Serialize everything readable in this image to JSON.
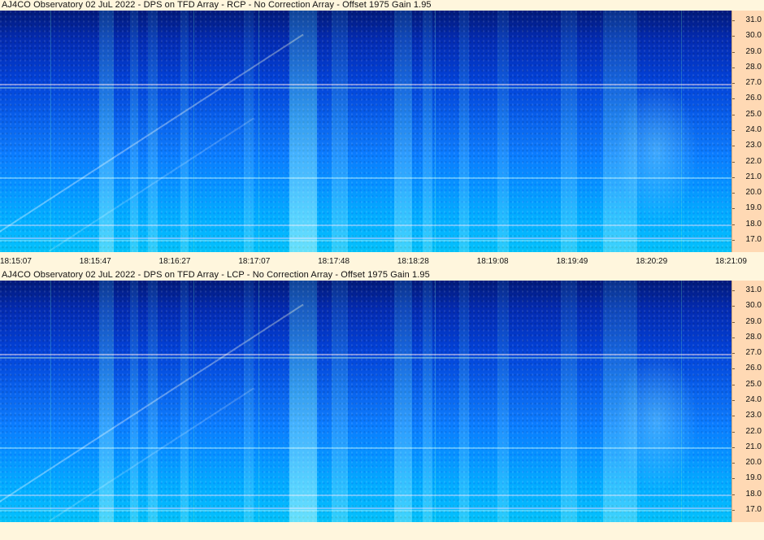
{
  "panels": [
    {
      "title": "AJ4CO Observatory 02 JuL 2022 - DPS on TFD Array  - RCP  -  No Correction Array  -  Offset 1975  Gain 1.95",
      "y_ticks": [
        "31.0",
        "30.0",
        "29.0",
        "28.0",
        "27.0",
        "26.0",
        "25.0",
        "24.0",
        "23.0",
        "22.0",
        "21.0",
        "20.0",
        "19.0",
        "18.0",
        "17.0"
      ],
      "x_ticks": [
        "18:15:07",
        "18:15:47",
        "18:16:27",
        "18:17:07",
        "18:17:48",
        "18:18:28",
        "18:19:08",
        "18:19:49",
        "18:20:29",
        "18:21:09"
      ]
    },
    {
      "title": "AJ4CO Observatory 02 JuL 2022 - DPS on TFD Array  - LCP  -  No Correction Array  -  Offset 1975  Gain 1.95",
      "y_ticks": [
        "31.0",
        "30.0",
        "29.0",
        "28.0",
        "27.0",
        "26.0",
        "25.0",
        "24.0",
        "23.0",
        "22.0",
        "21.0",
        "20.0",
        "19.0",
        "18.0",
        "17.0"
      ],
      "x_ticks": []
    }
  ],
  "style": {
    "background": "#fff6dd",
    "axis_bg": "#ffd9b4",
    "spectro_bg": "#0a2a9a",
    "band_color": "#b8ff3a",
    "hot_line_color": "#ff3b3b"
  }
}
